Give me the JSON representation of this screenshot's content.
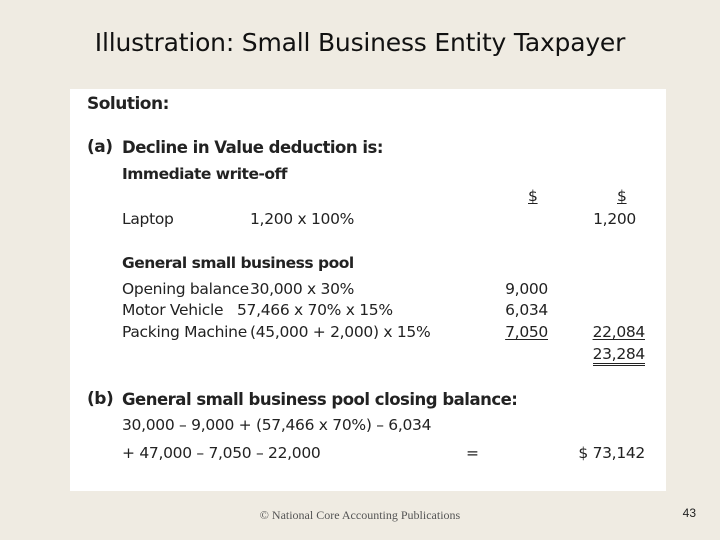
{
  "slide": {
    "title": "Illustration: Small Business Entity Taxpayer",
    "footer": "© National Core Accounting Publications",
    "page_number": "43"
  },
  "solution": {
    "heading": "Solution:",
    "part_a": {
      "label": "(a)",
      "heading": "Decline in Value deduction is:",
      "subheading": "Immediate write-off",
      "col1_header": "$",
      "col2_header": "$",
      "laptop": {
        "label": "Laptop",
        "calc": "1,200 x 100%",
        "col2": "1,200"
      },
      "pool_heading": "General small business pool",
      "pool_rows": [
        {
          "label": "Opening balance",
          "calc": "30,000 x 30%",
          "col1": "9,000"
        },
        {
          "label": "Motor Vehicle",
          "calc": "57,466 x 70% x 15%",
          "col1": "6,034"
        },
        {
          "label": "Packing Machine",
          "calc": "(45,000 + 2,000) x 15%",
          "col1": "7,050",
          "col2": "22,084"
        }
      ],
      "total": "23,284"
    },
    "part_b": {
      "label": "(b)",
      "heading": "General small business pool closing balance:",
      "line1": "30,000 – 9,000 + (57,466 x 70%) – 6,034",
      "line2": "+ 47,000 – 7,050 – 22,000",
      "equals": "=",
      "result": "$ 73,142"
    }
  }
}
